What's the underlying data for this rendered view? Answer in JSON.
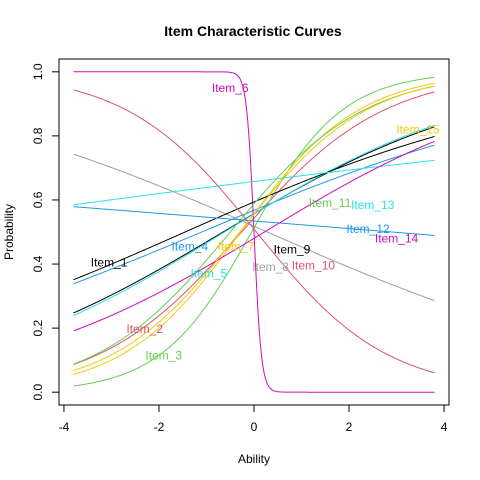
{
  "chart_data": {
    "type": "line",
    "title": "Item Characteristic Curves",
    "xlabel": "Ability",
    "ylabel": "Probability",
    "xlim": [
      -4,
      4
    ],
    "ylim": [
      0,
      1
    ],
    "x_ticks": [
      -4,
      -2,
      0,
      2,
      4
    ],
    "y_ticks": [
      0.0,
      0.2,
      0.4,
      0.6,
      0.8,
      1.0
    ],
    "x_tick_labels": [
      "-4",
      "-2",
      "0",
      "2",
      "4"
    ],
    "y_tick_labels": [
      "0.0",
      "0.2",
      "0.4",
      "0.6",
      "0.8",
      "1.0"
    ],
    "grid": false,
    "x_range": [
      -3.8,
      3.8
    ],
    "series": [
      {
        "name": "Item_1",
        "color": "#000000",
        "a": 0.208,
        "b": -0.65,
        "label_at": [
          -3.05,
          0.405
        ]
      },
      {
        "name": "Item_2",
        "color": "#DF536B",
        "a": 0.392,
        "b": -0.26,
        "label_at": [
          -2.3,
          0.197
        ]
      },
      {
        "name": "Item_3",
        "color": "#61D04F",
        "a": 0.616,
        "b": -0.05,
        "label_at": [
          -1.9,
          0.115
        ]
      },
      {
        "name": "Item_4",
        "color": "#2297E6",
        "a": 0.146,
        "b": -1.1,
        "label_at": [
          -1.35,
          0.455
        ]
      },
      {
        "name": "Item_5",
        "color": "#28E2E5",
        "a": 0.214,
        "b": -0.62,
        "label_at": [
          -0.95,
          0.37
        ]
      },
      {
        "name": "Item_6",
        "color": "#CD0BBC",
        "a": -7.6,
        "b": 0.0,
        "label_at": [
          -0.5,
          0.95
        ]
      },
      {
        "name": "Item_7",
        "color": "#F5C710",
        "a": 0.474,
        "b": -0.28,
        "label_at": [
          -0.38,
          0.455
        ]
      },
      {
        "name": "Item_8",
        "color": "#9E9E9E",
        "a": -0.153,
        "b": 0.28,
        "label_at": [
          0.35,
          0.39
        ]
      },
      {
        "name": "Item_9",
        "color": "#000000",
        "a": 0.154,
        "b": -1.45,
        "label_at": [
          0.8,
          0.445
        ]
      },
      {
        "name": "Item_10",
        "color": "#DF536B",
        "a": -0.43,
        "b": 0.05,
        "label_at": [
          1.25,
          0.395
        ]
      },
      {
        "name": "Item_11",
        "color": "#61D04F",
        "a": 0.418,
        "b": -0.5,
        "label_at": [
          1.6,
          0.59
        ]
      },
      {
        "name": "Item_12",
        "color": "#2297E6",
        "a": -0.028,
        "b": 2.9,
        "label_at": [
          2.4,
          0.51
        ]
      },
      {
        "name": "Item_13",
        "color": "#28E2E5",
        "a": 0.048,
        "b": -8.0,
        "label_at": [
          2.5,
          0.585
        ]
      },
      {
        "name": "Item_14",
        "color": "#CD0BBC",
        "a": 0.211,
        "b": 0.22,
        "label_at": [
          3.0,
          0.48
        ]
      },
      {
        "name": "Item_15",
        "color": "#F5C710",
        "a": 0.441,
        "b": -0.3,
        "label_at": [
          3.45,
          0.82
        ]
      }
    ]
  }
}
